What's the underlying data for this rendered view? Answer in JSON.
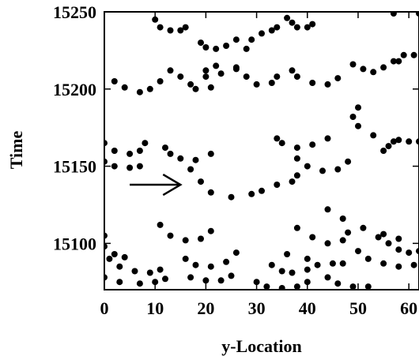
{
  "chart_data": {
    "type": "scatter",
    "title": "",
    "xlabel": "y-Location",
    "ylabel": "Time",
    "xlim": [
      0,
      62
    ],
    "ylim": [
      15070,
      15250
    ],
    "x_ticks": [
      0,
      10,
      20,
      30,
      40,
      50,
      60
    ],
    "y_ticks": [
      15100,
      15150,
      15200,
      15250
    ],
    "grid": false,
    "legend": "none",
    "mark_color": "#000000",
    "annotation": {
      "type": "arrow",
      "description": "arrow pointing right toward a highlighted trajectory",
      "tail": [
        5,
        15138
      ],
      "head": [
        15,
        15138
      ]
    },
    "series": [
      {
        "points": [
          [
            10,
            15245
          ],
          [
            11,
            15240
          ],
          [
            13,
            15238
          ],
          [
            15,
            15238
          ],
          [
            16,
            15240
          ],
          [
            19,
            15230
          ],
          [
            20,
            15227
          ],
          [
            22,
            15226
          ],
          [
            24,
            15228
          ],
          [
            26,
            15232
          ],
          [
            22,
            15215
          ],
          [
            20,
            15212
          ],
          [
            20,
            15208
          ],
          [
            23,
            15210
          ],
          [
            26,
            15214
          ],
          [
            28,
            15226
          ],
          [
            29,
            15232
          ],
          [
            31,
            15236
          ],
          [
            33,
            15238
          ],
          [
            34,
            15240
          ],
          [
            36,
            15246
          ],
          [
            37,
            15243
          ],
          [
            38,
            15240
          ],
          [
            40,
            15240
          ],
          [
            41,
            15242
          ],
          [
            2,
            15205
          ],
          [
            4,
            15201
          ],
          [
            7,
            15198
          ],
          [
            9,
            15200
          ],
          [
            11,
            15205
          ],
          [
            13,
            15212
          ],
          [
            15,
            15208
          ],
          [
            17,
            15203
          ],
          [
            18,
            15200
          ],
          [
            21,
            15201
          ],
          [
            26,
            15213
          ],
          [
            28,
            15208
          ],
          [
            30,
            15203
          ],
          [
            33,
            15204
          ],
          [
            34,
            15208
          ],
          [
            37,
            15212
          ],
          [
            38,
            15208
          ],
          [
            41,
            15204
          ],
          [
            44,
            15203
          ],
          [
            46,
            15207
          ],
          [
            49,
            15216
          ],
          [
            51,
            15213
          ],
          [
            53,
            15211
          ],
          [
            55,
            15214
          ],
          [
            57,
            15218
          ],
          [
            58,
            15218
          ],
          [
            59,
            15222
          ],
          [
            61,
            15222
          ],
          [
            57,
            15249
          ],
          [
            62,
            15249
          ],
          [
            50,
            15188
          ],
          [
            49,
            15182
          ],
          [
            50,
            15176
          ],
          [
            53,
            15170
          ],
          [
            57,
            15166
          ],
          [
            55,
            15160
          ],
          [
            56,
            15163
          ],
          [
            58,
            15167
          ],
          [
            60,
            15166
          ],
          [
            62,
            15166
          ],
          [
            34,
            15168
          ],
          [
            35,
            15165
          ],
          [
            38,
            15162
          ],
          [
            41,
            15164
          ],
          [
            44,
            15168
          ],
          [
            38,
            15155
          ],
          [
            40,
            15150
          ],
          [
            43,
            15147
          ],
          [
            46,
            15148
          ],
          [
            48,
            15153
          ],
          [
            0,
            15165
          ],
          [
            2,
            15160
          ],
          [
            5,
            15158
          ],
          [
            7,
            15160
          ],
          [
            8,
            15165
          ],
          [
            0,
            15153
          ],
          [
            2,
            15150
          ],
          [
            5,
            15149
          ],
          [
            7,
            15150
          ],
          [
            12,
            15162
          ],
          [
            13,
            15158
          ],
          [
            15,
            15155
          ],
          [
            18,
            15154
          ],
          [
            21,
            15158
          ],
          [
            17,
            15148
          ],
          [
            19,
            15140
          ],
          [
            21,
            15133
          ],
          [
            25,
            15130
          ],
          [
            29,
            15132
          ],
          [
            31,
            15134
          ],
          [
            34,
            15138
          ],
          [
            37,
            15140
          ],
          [
            38,
            15144
          ],
          [
            11,
            15112
          ],
          [
            13,
            15105
          ],
          [
            16,
            15102
          ],
          [
            19,
            15103
          ],
          [
            21,
            15108
          ],
          [
            16,
            15090
          ],
          [
            18,
            15086
          ],
          [
            21,
            15085
          ],
          [
            24,
            15088
          ],
          [
            26,
            15094
          ],
          [
            38,
            15110
          ],
          [
            41,
            15104
          ],
          [
            44,
            15100
          ],
          [
            47,
            15102
          ],
          [
            48,
            15107
          ],
          [
            44,
            15122
          ],
          [
            47,
            15116
          ],
          [
            51,
            15110
          ],
          [
            55,
            15106
          ],
          [
            58,
            15103
          ],
          [
            54,
            15104
          ],
          [
            56,
            15100
          ],
          [
            58,
            15096
          ],
          [
            60,
            15094
          ],
          [
            62,
            15095
          ],
          [
            50,
            15095
          ],
          [
            52,
            15090
          ],
          [
            55,
            15087
          ],
          [
            58,
            15085
          ],
          [
            61,
            15086
          ],
          [
            0,
            15105
          ],
          [
            0,
            15098
          ],
          [
            2,
            15093
          ],
          [
            4,
            15091
          ],
          [
            1,
            15090
          ],
          [
            3,
            15085
          ],
          [
            6,
            15082
          ],
          [
            9,
            15081
          ],
          [
            11,
            15083
          ],
          [
            0,
            15078
          ],
          [
            3,
            15075
          ],
          [
            7,
            15074
          ],
          [
            10,
            15075
          ],
          [
            12,
            15077
          ],
          [
            17,
            15078
          ],
          [
            20,
            15076
          ],
          [
            23,
            15076
          ],
          [
            25,
            15079
          ],
          [
            33,
            15086
          ],
          [
            35,
            15082
          ],
          [
            37,
            15081
          ],
          [
            40,
            15083
          ],
          [
            42,
            15086
          ],
          [
            30,
            15075
          ],
          [
            32,
            15072
          ],
          [
            35,
            15071
          ],
          [
            38,
            15072
          ],
          [
            40,
            15075
          ],
          [
            36,
            15093
          ],
          [
            40,
            15090
          ],
          [
            45,
            15087
          ],
          [
            47,
            15087
          ],
          [
            44,
            15078
          ],
          [
            46,
            15074
          ],
          [
            49,
            15072
          ],
          [
            52,
            15072
          ]
        ]
      }
    ]
  }
}
